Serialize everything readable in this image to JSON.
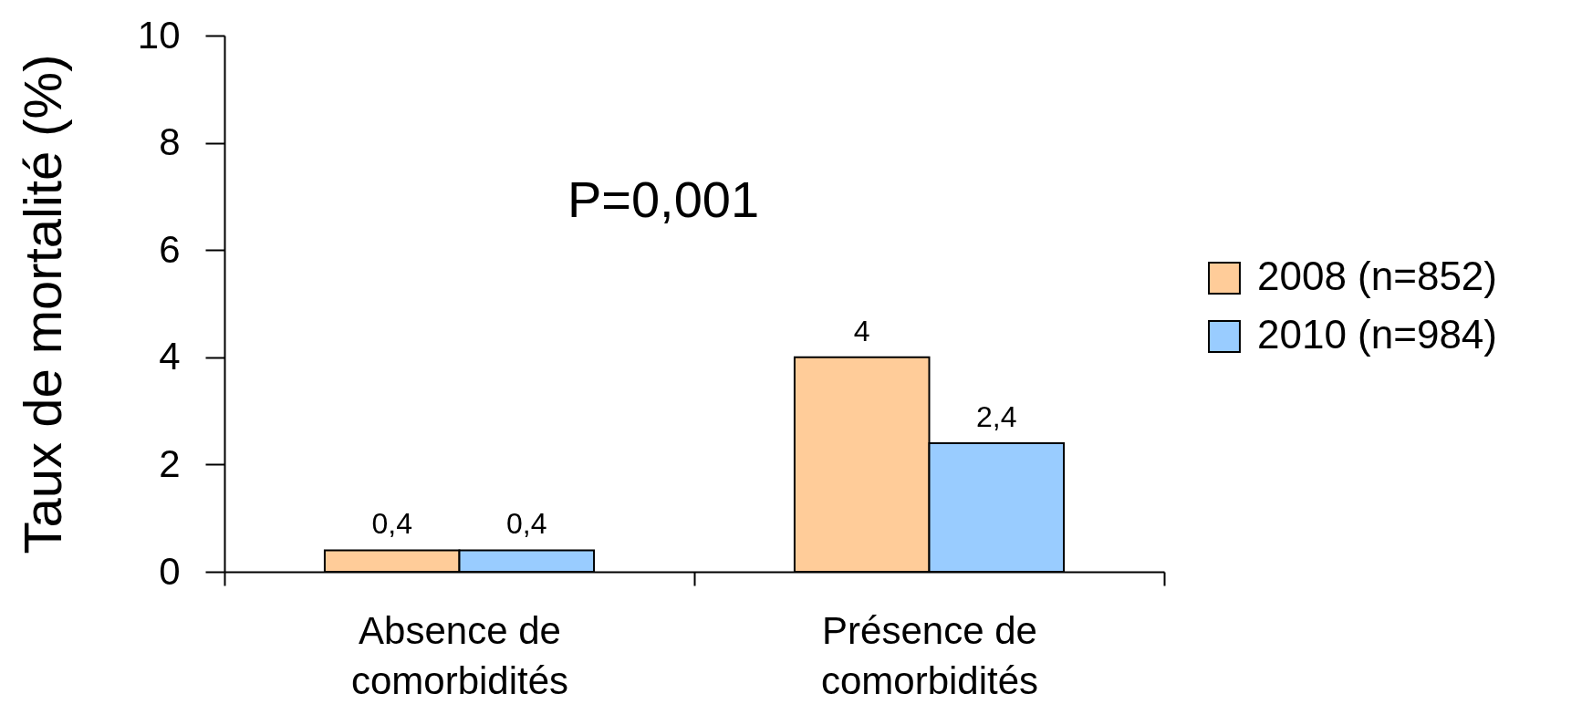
{
  "chart_data": {
    "type": "bar",
    "ylabel": "Taux de mortalité (%)",
    "categories": [
      "Absence de comorbidités",
      "Présence de comorbidités"
    ],
    "series": [
      {
        "name": "2008 (n=852)",
        "color": "#ffcc99",
        "values": [
          0.4,
          4
        ],
        "value_labels": [
          "0,4",
          "4"
        ]
      },
      {
        "name": "2010 (n=984)",
        "color": "#99ccff",
        "values": [
          0.4,
          2.4
        ],
        "value_labels": [
          "0,4",
          "2,4"
        ]
      }
    ],
    "ylim": [
      0,
      10
    ],
    "yticks": [
      0,
      2,
      4,
      6,
      8,
      10
    ],
    "legend": "right",
    "annotations": [
      "P=0,001"
    ]
  }
}
